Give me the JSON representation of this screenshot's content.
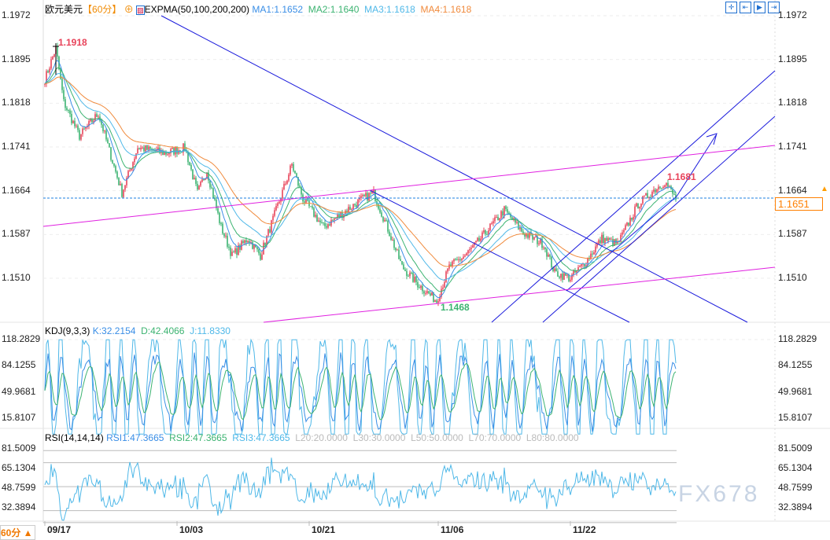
{
  "header": {
    "symbol": "欧元美元",
    "period": "【60分】",
    "indicator": "EXPMA(50,100,200,200)",
    "ma1": "MA1:1.1652",
    "ma2": "MA2:1.1640",
    "ma3": "MA3:1.1618",
    "ma4": "MA4:1.1618"
  },
  "toolbar": [
    "crosshair-icon",
    "zoom-range-icon",
    "play-range-icon",
    "exit-icon"
  ],
  "kdj": {
    "title": "KDJ(9,3,3)",
    "k": "K:32.2154",
    "d": "D:42.4066",
    "j": "J:11.8330",
    "ticks": [
      "118.2829",
      "84.1255",
      "49.9681",
      "15.8107"
    ]
  },
  "rsi": {
    "title": "RSI(14,14,14)",
    "r1": "RSI1:47.3665",
    "r2": "RSI2:47.3665",
    "r3": "RSI3:47.3665",
    "l20": "L20:20.0000",
    "l30": "L30:30.0000",
    "l50": "L50:50.0000",
    "l70": "L70:70.0000",
    "l80": "L80:80.0000",
    "ticks": [
      "81.5009",
      "65.1304",
      "48.7599",
      "32.3894"
    ]
  },
  "period_button": "60分 ▲",
  "watermark": "FX678",
  "colors": {
    "up": "#e8435a",
    "down": "#3cb371",
    "ma1": "#3a8ee6",
    "ma2": "#3cb371",
    "ma3": "#4fb8e8",
    "ma4": "#f08a3c",
    "trend": "#1a1adc",
    "channel": "#e020e0",
    "current": "#ff7f00"
  },
  "chart_data": {
    "type": "candlestick",
    "price_ticks": [
      "1.1972",
      "1.1895",
      "1.1818",
      "1.1741",
      "1.1664",
      "1.1587",
      "1.1510"
    ],
    "ylim": [
      1.1445,
      1.1972
    ],
    "current_price": "1.1651",
    "high_label": "1.1918",
    "low_label": "1.1468",
    "recent_high_label": "1.1681",
    "x_labels": [
      {
        "bar": 0,
        "label": "09/17"
      },
      {
        "bar": 84,
        "label": "10/03"
      },
      {
        "bar": 168,
        "label": "10/21"
      },
      {
        "bar": 250,
        "label": "11/06"
      },
      {
        "bar": 334,
        "label": "11/22"
      }
    ],
    "close_anchors": [
      [
        0,
        1.186
      ],
      [
        7,
        1.1915
      ],
      [
        12,
        1.182
      ],
      [
        22,
        1.176
      ],
      [
        34,
        1.18
      ],
      [
        49,
        1.166
      ],
      [
        59,
        1.174
      ],
      [
        77,
        1.173
      ],
      [
        89,
        1.174
      ],
      [
        97,
        1.166
      ],
      [
        103,
        1.17
      ],
      [
        112,
        1.16
      ],
      [
        119,
        1.155
      ],
      [
        129,
        1.158
      ],
      [
        137,
        1.155
      ],
      [
        147,
        1.163
      ],
      [
        157,
        1.171
      ],
      [
        164,
        1.165
      ],
      [
        177,
        1.16
      ],
      [
        187,
        1.162
      ],
      [
        202,
        1.165
      ],
      [
        209,
        1.166
      ],
      [
        219,
        1.159
      ],
      [
        227,
        1.153
      ],
      [
        237,
        1.15
      ],
      [
        249,
        1.147
      ],
      [
        257,
        1.153
      ],
      [
        267,
        1.155
      ],
      [
        274,
        1.157
      ],
      [
        292,
        1.163
      ],
      [
        304,
        1.159
      ],
      [
        317,
        1.157
      ],
      [
        324,
        1.152
      ],
      [
        334,
        1.151
      ],
      [
        344,
        1.154
      ],
      [
        354,
        1.158
      ],
      [
        364,
        1.157
      ],
      [
        377,
        1.164
      ],
      [
        387,
        1.1665
      ],
      [
        394,
        1.168
      ],
      [
        401,
        1.165
      ]
    ]
  }
}
